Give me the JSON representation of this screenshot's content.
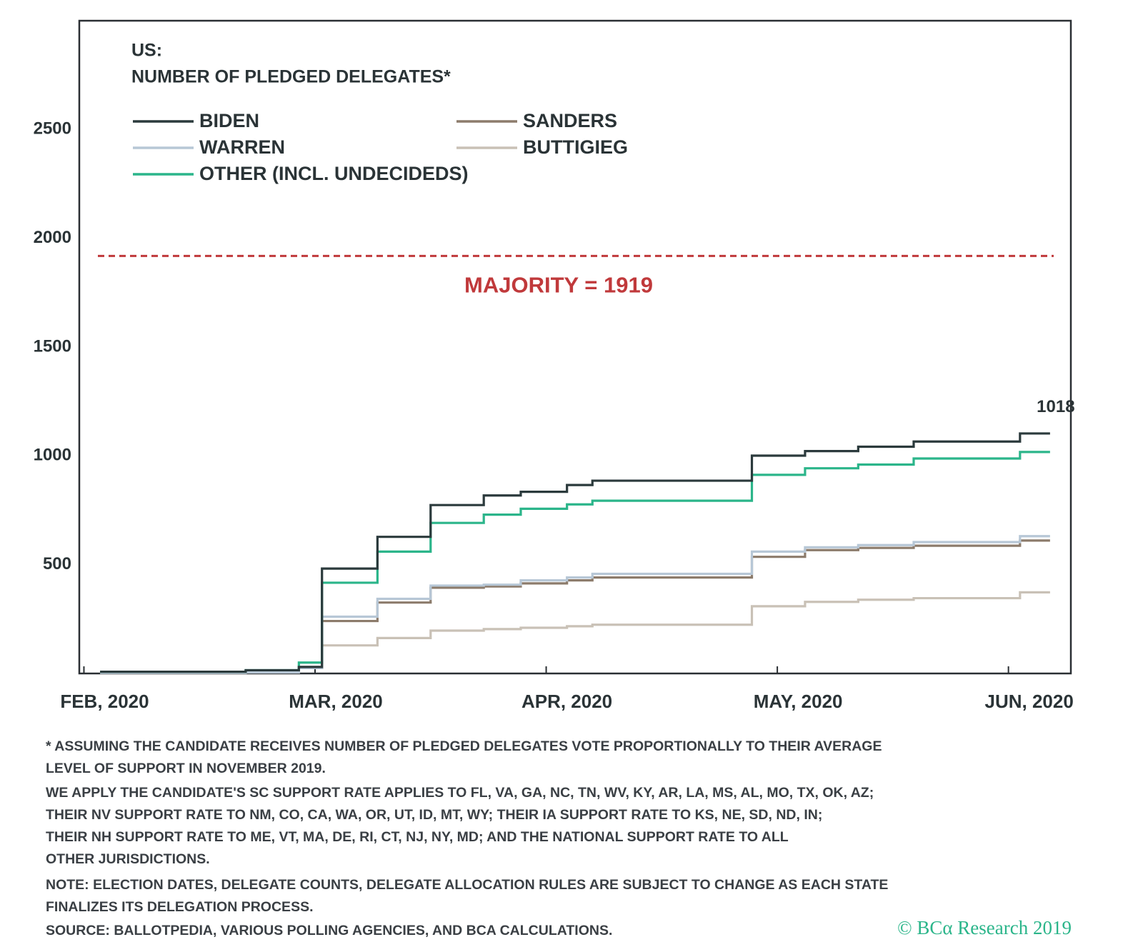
{
  "chart_data": {
    "type": "step",
    "title": "US:",
    "subtitle": "NUMBER OF PLEDGED DELEGATES*",
    "x": [
      2.07,
      2.7,
      2.93,
      3.03,
      3.27,
      3.5,
      3.73,
      3.89,
      4.09,
      4.2,
      4.89,
      5.12,
      5.35,
      5.59,
      6.05,
      6.18
    ],
    "series": [
      {
        "name": "BIDEN",
        "color": "#2b3a3c",
        "values": [
          8,
          15,
          30,
          482,
          628,
          774,
          818,
          835,
          866,
          886,
          1001,
          1022,
          1042,
          1066,
          1103,
          1103
        ]
      },
      {
        "name": "SANDERS",
        "color": "#8c7b6b",
        "values": [
          3,
          5,
          25,
          241,
          326,
          394,
          400,
          414,
          428,
          441,
          536,
          567,
          577,
          587,
          611,
          611
        ]
      },
      {
        "name": "WARREN",
        "color": "#b7c7d6",
        "values": [
          3,
          5,
          25,
          261,
          343,
          404,
          408,
          428,
          441,
          458,
          560,
          580,
          590,
          604,
          631,
          631
        ]
      },
      {
        "name": "BUTTIGIEG",
        "color": "#c9c1b6",
        "values": [
          3,
          5,
          30,
          129,
          163,
          197,
          204,
          210,
          217,
          224,
          309,
          329,
          339,
          346,
          373,
          373
        ]
      },
      {
        "name": "OTHER (INCL. UNDECIDEDS)",
        "color": "#2bb58a",
        "values": [
          8,
          15,
          50,
          417,
          560,
          692,
          730,
          757,
          777,
          794,
          913,
          943,
          960,
          988,
          1018,
          1018
        ]
      }
    ],
    "xlim": [
      1.98,
      6.27
    ],
    "xticks": [
      {
        "value": 2,
        "label": "FEB, 2020"
      },
      {
        "value": 3,
        "label": "MAR, 2020"
      },
      {
        "value": 4,
        "label": "APR, 2020"
      },
      {
        "value": 5,
        "label": "MAY, 2020"
      },
      {
        "value": 6,
        "label": "JUN, 2020"
      }
    ],
    "ylim": [
      0,
      3000
    ],
    "yticks": [
      500,
      1000,
      1500,
      2000,
      2500
    ],
    "grid": false,
    "majority": {
      "value": 1919,
      "label": "MAJORITY = 1919",
      "color": "#c0393b"
    },
    "end_label": {
      "value": 1018,
      "label": "1018"
    },
    "footnotes": [
      "* ASSUMING THE CANDIDATE RECEIVES NUMBER OF PLEDGED DELEGATES VOTE PROPORTIONALLY TO THEIR AVERAGE",
      "LEVEL OF SUPPORT IN NOVEMBER 2019.",
      "WE APPLY THE CANDIDATE'S SC SUPPORT RATE APPLIES TO FL, VA, GA, NC, TN, WV, KY, AR, LA, MS, AL, MO, TX, OK, AZ;",
      "THEIR NV SUPPORT RATE TO NM, CO, CA, WA, OR, UT, ID, MT, WY; THEIR IA SUPPORT RATE TO KS, NE, SD, ND, IN;",
      "THEIR NH SUPPORT RATE TO ME, VT, MA, DE, RI, CT, NJ, NY, MD; AND THE NATIONAL SUPPORT RATE TO ALL",
      "OTHER JURISDICTIONS.",
      "NOTE: ELECTION DATES, DELEGATE COUNTS, DELEGATE ALLOCATION RULES ARE SUBJECT TO CHANGE AS EACH STATE",
      "FINALIZES ITS DELEGATION PROCESS.",
      "SOURCE: BALLOTPEDIA, VARIOUS POLLING AGENCIES, AND BCA CALCULATIONS."
    ],
    "copyright": "© BCα Research 2019"
  }
}
